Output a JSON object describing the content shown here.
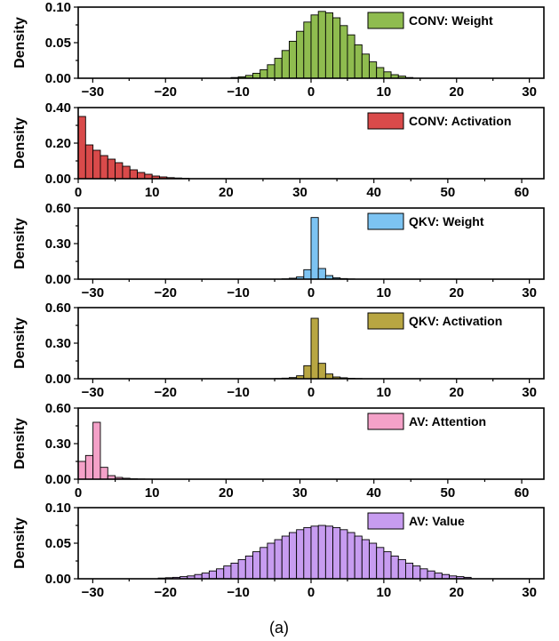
{
  "caption": "(a)",
  "chart_data": [
    {
      "type": "bar",
      "legend": "CONV: Weight",
      "color": "#8fbc4f",
      "ylabel": "Density",
      "xlim": [
        -32,
        32
      ],
      "ylim": [
        0,
        0.1
      ],
      "xticks": [
        -30,
        -20,
        -10,
        0,
        10,
        20,
        30
      ],
      "xtick_labels": [
        "−30",
        "−20",
        "−10",
        "0",
        "10",
        "20",
        "30"
      ],
      "yticks": [
        0,
        0.05,
        0.1
      ],
      "ytick_labels": [
        "0.00",
        "0.05",
        "0.10"
      ],
      "bin_width": 1,
      "x": [
        -11,
        -10,
        -9,
        -8,
        -7,
        -6,
        -5,
        -4,
        -3,
        -2,
        -1,
        0,
        1,
        2,
        3,
        4,
        5,
        6,
        7,
        8,
        9,
        10,
        11,
        12,
        13
      ],
      "values": [
        0.001,
        0.002,
        0.004,
        0.007,
        0.012,
        0.019,
        0.028,
        0.039,
        0.052,
        0.066,
        0.079,
        0.089,
        0.094,
        0.092,
        0.085,
        0.074,
        0.061,
        0.047,
        0.034,
        0.023,
        0.015,
        0.009,
        0.005,
        0.003,
        0.001
      ]
    },
    {
      "type": "bar",
      "legend": "CONV: Activation",
      "color": "#d94a4a",
      "ylabel": "Density",
      "xlim": [
        0,
        63
      ],
      "ylim": [
        0,
        0.4
      ],
      "xticks": [
        0,
        10,
        20,
        30,
        40,
        50,
        60
      ],
      "xtick_labels": [
        "0",
        "10",
        "20",
        "30",
        "40",
        "50",
        "60"
      ],
      "yticks": [
        0,
        0.2,
        0.4
      ],
      "ytick_labels": [
        "0.00",
        "0.20",
        "0.40"
      ],
      "bin_width": 1,
      "x": [
        0,
        1,
        2,
        3,
        4,
        5,
        6,
        7,
        8,
        9,
        10,
        11,
        12,
        13,
        14
      ],
      "values": [
        0.35,
        0.19,
        0.16,
        0.13,
        0.11,
        0.09,
        0.07,
        0.05,
        0.035,
        0.025,
        0.015,
        0.01,
        0.006,
        0.004,
        0.002
      ]
    },
    {
      "type": "bar",
      "legend": "QKV: Weight",
      "color": "#7cc3f2",
      "ylabel": "Density",
      "xlim": [
        -32,
        32
      ],
      "ylim": [
        0,
        0.6
      ],
      "xticks": [
        -30,
        -20,
        -10,
        0,
        10,
        20,
        30
      ],
      "xtick_labels": [
        "−30",
        "−20",
        "−10",
        "0",
        "10",
        "20",
        "30"
      ],
      "yticks": [
        0,
        0.3,
        0.6
      ],
      "ytick_labels": [
        "0.00",
        "0.30",
        "0.60"
      ],
      "bin_width": 1,
      "x": [
        -4,
        -3,
        -2,
        -1,
        0,
        1,
        2,
        3,
        4,
        5
      ],
      "values": [
        0.003,
        0.008,
        0.02,
        0.08,
        0.52,
        0.09,
        0.03,
        0.012,
        0.005,
        0.002
      ]
    },
    {
      "type": "bar",
      "legend": "QKV: Activation",
      "color": "#b8a642",
      "ylabel": "Density",
      "xlim": [
        -32,
        32
      ],
      "ylim": [
        0,
        0.6
      ],
      "xticks": [
        -30,
        -20,
        -10,
        0,
        10,
        20,
        30
      ],
      "xtick_labels": [
        "−30",
        "−20",
        "−10",
        "0",
        "10",
        "20",
        "30"
      ],
      "yticks": [
        0,
        0.3,
        0.6
      ],
      "ytick_labels": [
        "0.00",
        "0.30",
        "0.60"
      ],
      "bin_width": 1,
      "x": [
        -5,
        -4,
        -3,
        -2,
        -1,
        0,
        1,
        2,
        3,
        4,
        5,
        6
      ],
      "values": [
        0.002,
        0.005,
        0.01,
        0.025,
        0.11,
        0.51,
        0.13,
        0.04,
        0.015,
        0.008,
        0.004,
        0.002
      ]
    },
    {
      "type": "bar",
      "legend": "AV: Attention",
      "color": "#f4a1c8",
      "ylabel": "Density",
      "xlim": [
        0,
        63
      ],
      "ylim": [
        0,
        0.6
      ],
      "xticks": [
        0,
        10,
        20,
        30,
        40,
        50,
        60
      ],
      "xtick_labels": [
        "0",
        "10",
        "20",
        "30",
        "40",
        "50",
        "60"
      ],
      "yticks": [
        0,
        0.3,
        0.6
      ],
      "ytick_labels": [
        "0.00",
        "0.30",
        "0.60"
      ],
      "bin_width": 1,
      "x": [
        0,
        1,
        2,
        3,
        4,
        5,
        6,
        7,
        8,
        9
      ],
      "values": [
        0.15,
        0.2,
        0.48,
        0.1,
        0.03,
        0.015,
        0.008,
        0.004,
        0.002,
        0.001
      ]
    },
    {
      "type": "bar",
      "legend": "AV: Value",
      "color": "#c79cf0",
      "ylabel": "Density",
      "xlim": [
        -32,
        32
      ],
      "ylim": [
        0,
        0.1
      ],
      "xticks": [
        -30,
        -20,
        -10,
        0,
        10,
        20,
        30
      ],
      "xtick_labels": [
        "−30",
        "−20",
        "−10",
        "0",
        "10",
        "20",
        "30"
      ],
      "yticks": [
        0,
        0.05,
        0.1
      ],
      "ytick_labels": [
        "0.00",
        "0.05",
        "0.10"
      ],
      "bin_width": 1,
      "x": [
        -21,
        -20,
        -19,
        -18,
        -17,
        -16,
        -15,
        -14,
        -13,
        -12,
        -11,
        -10,
        -9,
        -8,
        -7,
        -6,
        -5,
        -4,
        -3,
        -2,
        -1,
        0,
        1,
        2,
        3,
        4,
        5,
        6,
        7,
        8,
        9,
        10,
        11,
        12,
        13,
        14,
        15,
        16,
        17,
        18,
        19,
        20,
        21
      ],
      "values": [
        0.001,
        0.0015,
        0.002,
        0.003,
        0.004,
        0.006,
        0.008,
        0.011,
        0.014,
        0.018,
        0.022,
        0.027,
        0.032,
        0.038,
        0.044,
        0.05,
        0.055,
        0.06,
        0.065,
        0.069,
        0.072,
        0.074,
        0.075,
        0.074,
        0.072,
        0.069,
        0.065,
        0.06,
        0.055,
        0.05,
        0.044,
        0.038,
        0.032,
        0.027,
        0.022,
        0.018,
        0.014,
        0.011,
        0.008,
        0.006,
        0.004,
        0.003,
        0.002
      ]
    }
  ]
}
